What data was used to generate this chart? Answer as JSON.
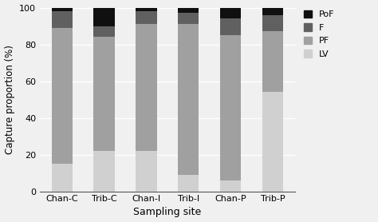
{
  "categories": [
    "Chan-C",
    "Trib-C",
    "Chan-I",
    "Trib-I",
    "Chan-P",
    "Trib-P"
  ],
  "series": {
    "LV": [
      15,
      22,
      22,
      9,
      6,
      54
    ],
    "PF": [
      74,
      62,
      69,
      82,
      79,
      33
    ],
    "F": [
      9,
      6,
      7,
      6,
      9,
      9
    ],
    "PoF": [
      2,
      10,
      2,
      3,
      6,
      4
    ]
  },
  "colors": {
    "LV": "#d0d0d0",
    "PF": "#a0a0a0",
    "F": "#606060",
    "PoF": "#101010"
  },
  "ylabel": "Capture proportion (%)",
  "xlabel": "Sampling site",
  "ylim": [
    0,
    100
  ],
  "yticks": [
    0,
    20,
    40,
    60,
    80,
    100
  ],
  "legend_order": [
    "PoF",
    "F",
    "PF",
    "LV"
  ],
  "bar_width": 0.5,
  "figsize": [
    4.74,
    2.78
  ],
  "dpi": 100,
  "bg_color": "#f0f0f0",
  "grid_color": "#ffffff"
}
